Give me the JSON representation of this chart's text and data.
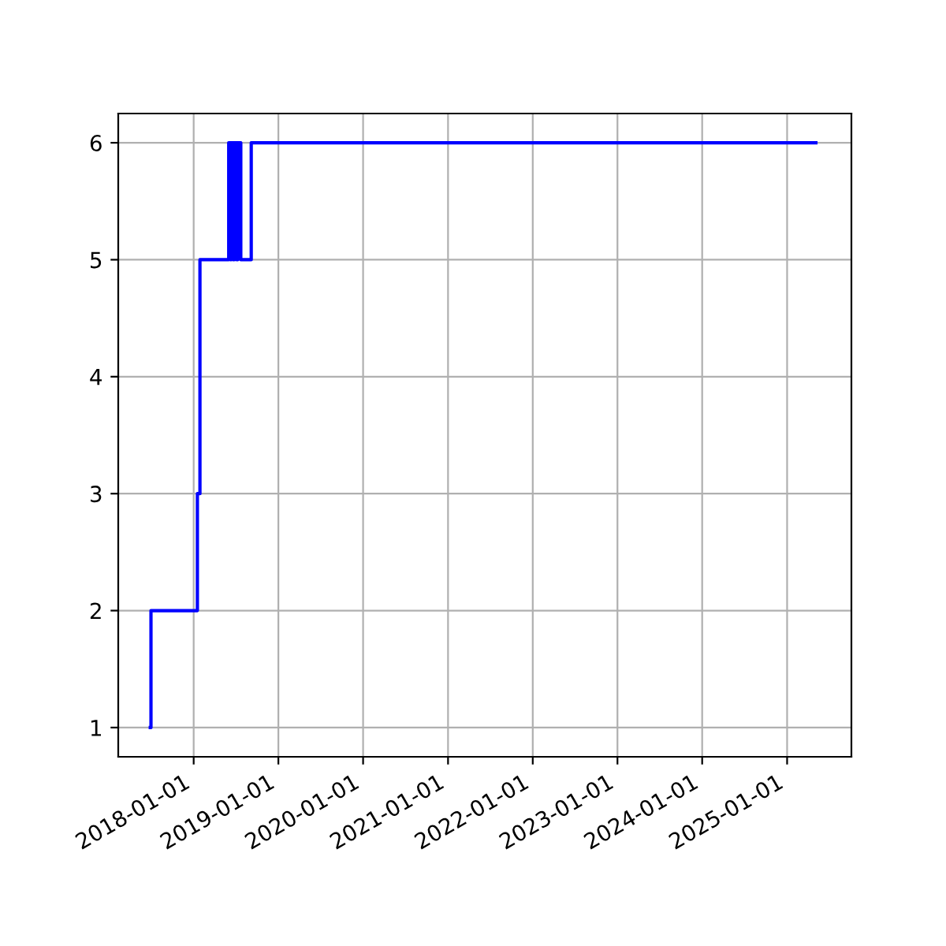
{
  "chart_data": {
    "type": "step",
    "color": "#0000ff",
    "grid": true,
    "x": [
      "2017-06-28",
      "2017-07-01",
      "2018-01-17",
      "2018-01-28",
      "2018-06-01",
      "2018-06-08",
      "2018-06-12",
      "2018-06-20",
      "2018-06-25",
      "2018-07-05",
      "2018-07-10",
      "2018-07-23",
      "2018-09-06",
      "2025-05-05"
    ],
    "values": [
      1,
      2,
      3,
      5,
      6,
      5,
      6,
      5,
      6,
      5,
      6,
      5,
      6,
      6
    ],
    "xlim": [
      "2017-02-10",
      "2025-10-05"
    ],
    "xticks": [
      "2018-01-01",
      "2019-01-01",
      "2020-01-01",
      "2021-01-01",
      "2022-01-01",
      "2023-01-01",
      "2024-01-01",
      "2025-01-01"
    ],
    "ylim": [
      0.75,
      6.25
    ],
    "yticks": [
      1,
      2,
      3,
      4,
      5,
      6
    ]
  }
}
